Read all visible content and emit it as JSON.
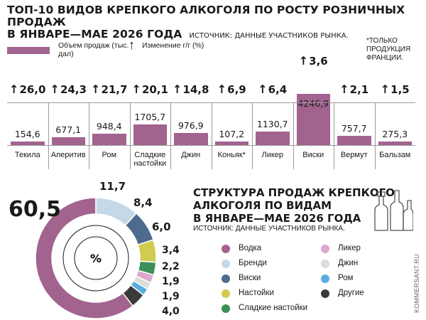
{
  "header": {
    "title_line1": "ТОП-10 ВИДОВ КРЕПКОГО АЛКОГОЛЯ ПО РОСТУ РОЗНИЧНЫХ ПРОДАЖ",
    "title_line2": "В ЯНВАРЕ—МАЕ 2026 ГОДА",
    "source": "ИСТОЧНИК: ДАННЫЕ УЧАСТНИКОВ РЫНКА."
  },
  "legend_top": {
    "volume_label": "Объем продаж (тыс. дал)",
    "change_arrow": "↑",
    "change_label": "Изменение г/г (%)"
  },
  "note": "*ТОЛЬКО ПРОДУКЦИЯ ФРАНЦИИ.",
  "colors": {
    "bar": "#a2638f"
  },
  "chart_data": [
    {
      "type": "bar",
      "title": "ТОП-10 ВИДОВ КРЕПКОГО АЛКОГОЛЯ ПО РОСТУ РОЗНИЧНЫХ ПРОДАЖ В ЯНВАРЕ—МАЕ 2026 ГОДА",
      "categories": [
        "Текила",
        "Аперитив",
        "Ром",
        "Сладкие настойки",
        "Джин",
        "Коньяк*",
        "Ликер",
        "Виски",
        "Вермут",
        "Бальзам"
      ],
      "values": [
        154.6,
        677.1,
        948.4,
        1705.7,
        976.9,
        107.2,
        1130.7,
        4246.9,
        757.7,
        275.3
      ],
      "value_labels": [
        "154,6",
        "677,1",
        "948,4",
        "1705,7",
        "976,9",
        "107,2",
        "1130,7",
        "4246,9",
        "757,7",
        "275,3"
      ],
      "growth": [
        26.0,
        24.3,
        21.7,
        20.1,
        14.8,
        6.9,
        6.4,
        3.6,
        2.1,
        1.5
      ],
      "growth_labels": [
        "26,0",
        "24,3",
        "21,7",
        "20,1",
        "14,8",
        "6,9",
        "6,4",
        "3,6",
        "2,1",
        "1,5"
      ],
      "series": [
        {
          "name": "Объем продаж (тыс. дал)"
        },
        {
          "name": "Изменение г/г (%)"
        }
      ]
    },
    {
      "type": "pie",
      "title": "СТРУКТУРА ПРОДАЖ КРЕПКОГО АЛКОГОЛЯ ПО ВИДАМ В ЯНВАРЕ—МАЕ 2026 ГОДА",
      "source": "ИСТОЧНИК: ДАННЫЕ УЧАСТНИКОВ РЫНКА.",
      "center_label": "%",
      "labels": [
        "Водка",
        "Бренди",
        "Виски",
        "Настойки",
        "Сладкие настойки",
        "Ликер",
        "Джин",
        "Ром",
        "Другие"
      ],
      "values": [
        60.5,
        11.7,
        8.4,
        6.0,
        3.4,
        2.2,
        1.9,
        1.9,
        4.0
      ],
      "value_labels": [
        "60,5",
        "11,7",
        "8,4",
        "6,0",
        "3,4",
        "2,2",
        "1,9",
        "1,9",
        "4,0"
      ],
      "colors": [
        "#a2638f",
        "#c5d8e8",
        "#4e6a8e",
        "#d1cc4f",
        "#3e8f5a",
        "#dca9d0",
        "#dcdcdc",
        "#59aee0",
        "#3a3a3a"
      ]
    }
  ],
  "credit": "KOMMERSANT.RU"
}
